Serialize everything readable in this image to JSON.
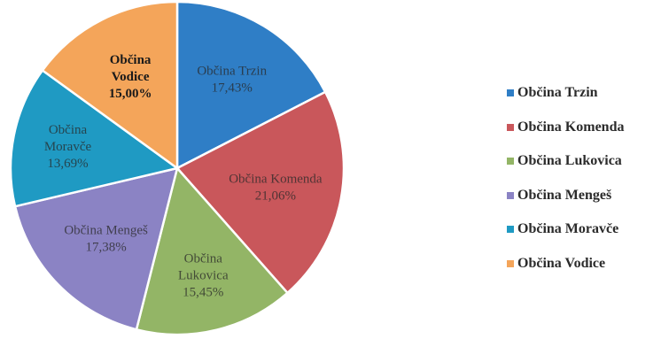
{
  "chart_data": {
    "type": "pie",
    "title": "",
    "legend_position": "right",
    "slices": [
      {
        "name": "Občina Trzin",
        "value": 17.43,
        "label_text": "17,43%",
        "color": "#2f7ec6"
      },
      {
        "name": "Občina Komenda",
        "value": 21.06,
        "label_text": "21,06%",
        "color": "#c9575b"
      },
      {
        "name": "Občina Lukovica",
        "value": 15.45,
        "label_text": "15,45%",
        "color": "#93b566"
      },
      {
        "name": "Občina Mengeš",
        "value": 17.38,
        "label_text": "17,38%",
        "color": "#8b83c4"
      },
      {
        "name": "Občina Moravče",
        "value": 13.69,
        "label_text": "13,69%",
        "color": "#1f9ac3"
      },
      {
        "name": "Občina Vodice",
        "value": 15.0,
        "label_text": "15,00%",
        "color": "#f4a55a"
      }
    ]
  }
}
